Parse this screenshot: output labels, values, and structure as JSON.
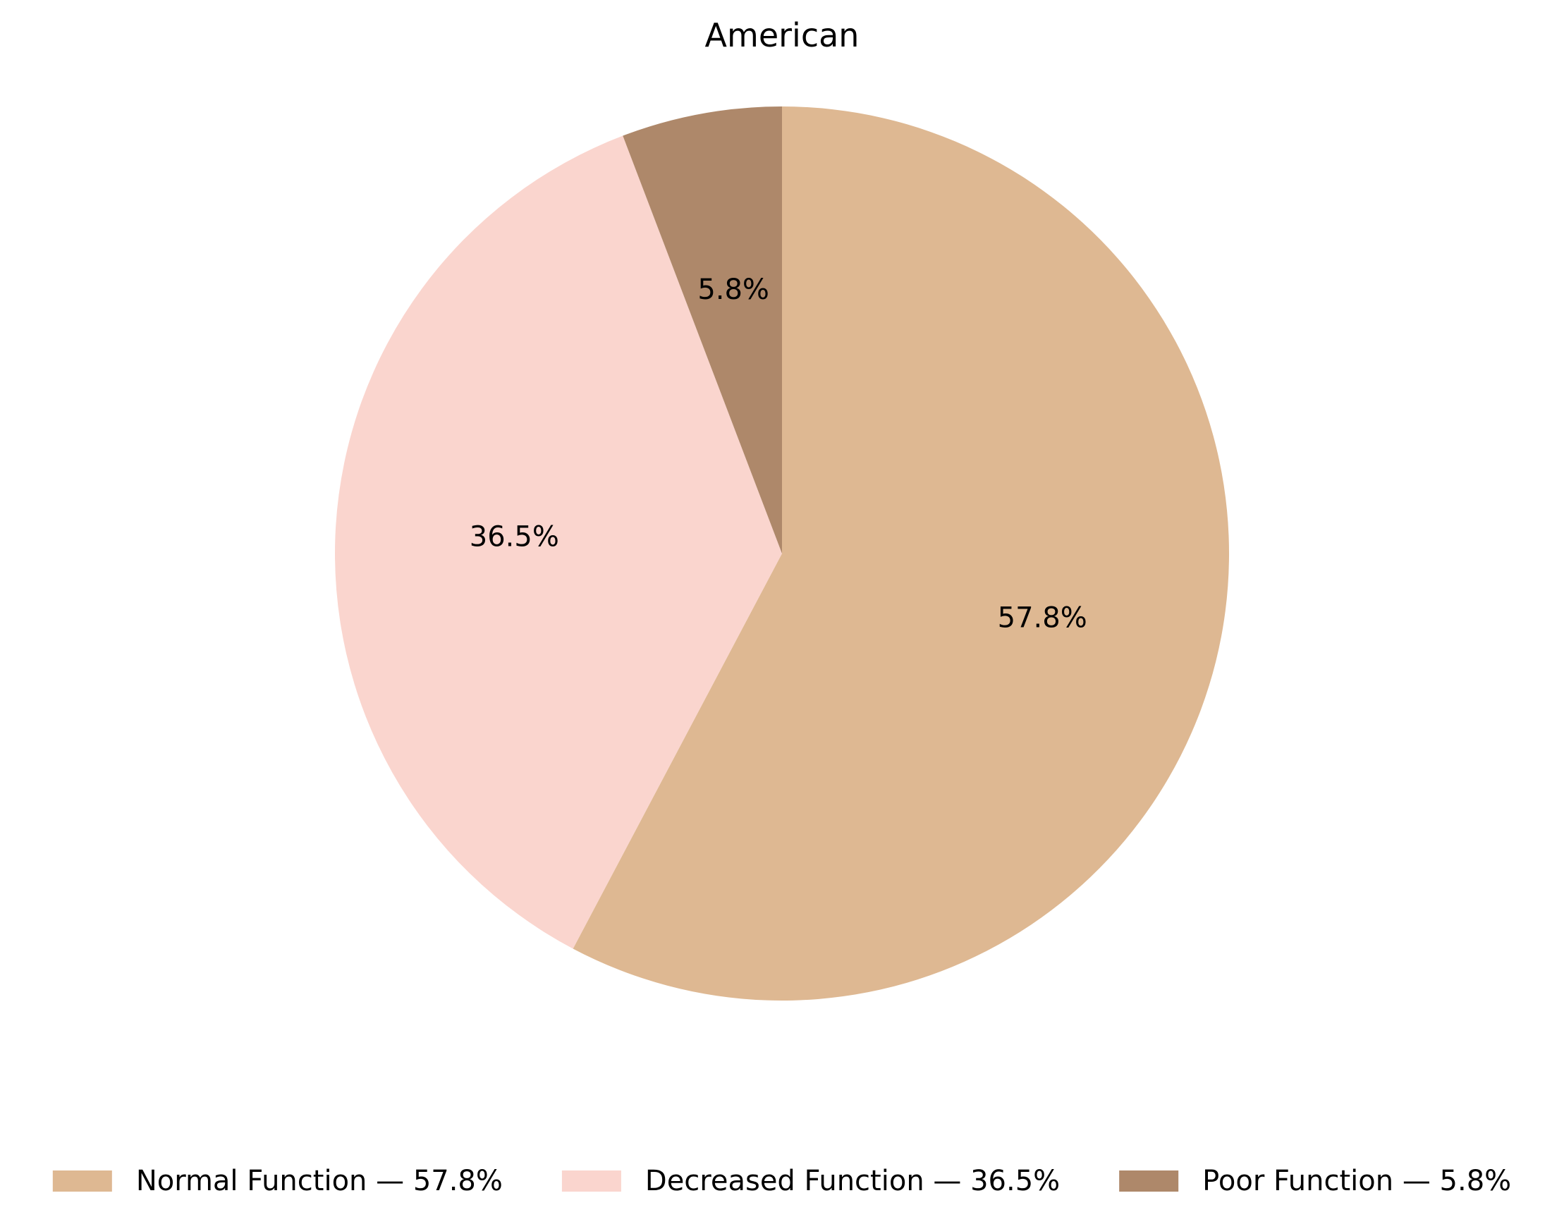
{
  "chart_data": {
    "type": "pie",
    "title": "American",
    "slices": [
      {
        "label": "Normal Function",
        "value": 57.8,
        "pct_label": "57.8%",
        "legend_label": "Normal Function — 57.8%",
        "color": "#DEB892"
      },
      {
        "label": "Decreased Function",
        "value": 36.5,
        "pct_label": "36.5%",
        "legend_label": "Decreased Function — 36.5%",
        "color": "#FAD5CE"
      },
      {
        "label": "Poor Function",
        "value": 5.8,
        "pct_label": "5.8%",
        "legend_label": "Poor Function — 5.8%",
        "color": "#AE886A"
      }
    ],
    "start_angle_deg": 90,
    "direction": "clockwise",
    "legend_position": "bottom"
  }
}
